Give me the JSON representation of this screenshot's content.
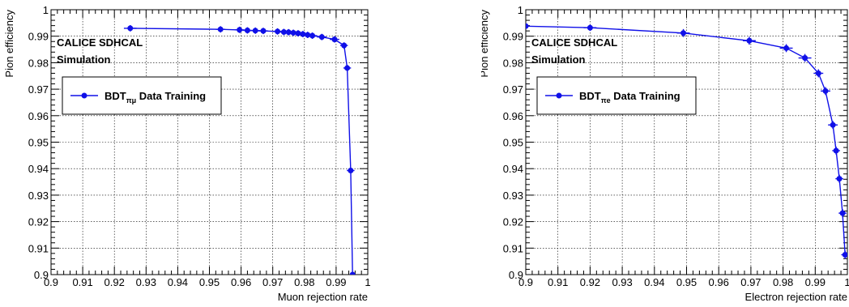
{
  "chart_data": [
    {
      "type": "line",
      "xlabel": "Muon rejection rate",
      "ylabel": "Pion efficiency",
      "xlim": [
        0.9,
        1.0
      ],
      "ylim": [
        0.9,
        1.0
      ],
      "grid": true,
      "x_ticks": [
        "0.9",
        "0.91",
        "0.92",
        "0.93",
        "0.94",
        "0.95",
        "0.96",
        "0.97",
        "0.98",
        "0.99",
        "1"
      ],
      "y_ticks": [
        "0.9",
        "0.91",
        "0.92",
        "0.93",
        "0.94",
        "0.95",
        "0.96",
        "0.97",
        "0.98",
        "0.99",
        "1"
      ],
      "annotations": [
        "CALICE SDHCAL",
        "Simulation"
      ],
      "legend_position": "top-left",
      "color": "#1010e8",
      "series": [
        {
          "name_main": "BDT",
          "name_sub": "πμ",
          "name_suffix": " Data Training",
          "x": [
            0.925,
            0.9535,
            0.9595,
            0.962,
            0.9645,
            0.967,
            0.9715,
            0.9735,
            0.975,
            0.9765,
            0.978,
            0.9795,
            0.981,
            0.9825,
            0.9855,
            0.9895,
            0.9925,
            0.9935,
            0.9946,
            0.9952
          ],
          "y": [
            0.993,
            0.9926,
            0.9924,
            0.9922,
            0.9921,
            0.992,
            0.9918,
            0.9916,
            0.9915,
            0.9913,
            0.9911,
            0.9908,
            0.9905,
            0.9902,
            0.9897,
            0.9888,
            0.9865,
            0.978,
            0.9393,
            0.9
          ],
          "xerr": [
            0.002,
            0.0015,
            0.0015,
            0.0015,
            0.0015,
            0.0015,
            0.0015,
            0.0015,
            0.0015,
            0.0015,
            0.0015,
            0.0015,
            0.0015,
            0.0015,
            0.0015,
            0.0015,
            0.0012,
            0.0012,
            0.0012,
            0.0
          ],
          "yerr": [
            0.0012,
            0.0012,
            0.0012,
            0.0012,
            0.0012,
            0.0012,
            0.0012,
            0.0012,
            0.0012,
            0.0012,
            0.0012,
            0.0012,
            0.0012,
            0.0012,
            0.0012,
            0.0012,
            0.0012,
            0.0012,
            0.0,
            0.0
          ]
        }
      ]
    },
    {
      "type": "line",
      "xlabel": "Electron rejection rate",
      "ylabel": "Pion efficiency",
      "xlim": [
        0.9,
        1.0
      ],
      "ylim": [
        0.9,
        1.0
      ],
      "grid": true,
      "x_ticks": [
        "0.9",
        "0.91",
        "0.92",
        "0.93",
        "0.94",
        "0.95",
        "0.96",
        "0.97",
        "0.98",
        "0.99",
        "1"
      ],
      "y_ticks": [
        "0.9",
        "0.91",
        "0.92",
        "0.93",
        "0.94",
        "0.95",
        "0.96",
        "0.97",
        "0.98",
        "0.99",
        "1"
      ],
      "annotations": [
        "CALICE SDHCAL",
        "Simulation"
      ],
      "legend_position": "top-left",
      "color": "#1010e8",
      "series": [
        {
          "name_main": "BDT",
          "name_sub": "πe",
          "name_suffix": " Data Training",
          "x": [
            0.9,
            0.92,
            0.949,
            0.9695,
            0.981,
            0.9868,
            0.991,
            0.9932,
            0.9955,
            0.9965,
            0.9975,
            0.9985,
            0.9993
          ],
          "y": [
            0.9938,
            0.9932,
            0.9912,
            0.9883,
            0.9855,
            0.9818,
            0.976,
            0.9693,
            0.9565,
            0.9468,
            0.9362,
            0.9232,
            0.9075
          ],
          "xerr": [
            0.0,
            0.002,
            0.002,
            0.002,
            0.002,
            0.002,
            0.0015,
            0.0015,
            0.0015,
            0.0012,
            0.0012,
            0.0012,
            0.0012
          ],
          "yerr": [
            0.0,
            0.0012,
            0.0015,
            0.0015,
            0.0015,
            0.0015,
            0.0015,
            0.0015,
            0.0015,
            0.0015,
            0.0015,
            0.0015,
            0.0015
          ]
        }
      ]
    }
  ]
}
